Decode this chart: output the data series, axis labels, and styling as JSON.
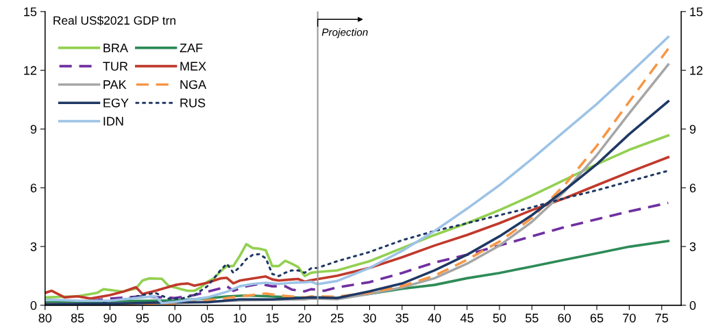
{
  "chart_data": {
    "type": "line",
    "ylabel": "Real US$2021 GDP trn",
    "xlim": [
      1980,
      2078
    ],
    "ylim": [
      0,
      15
    ],
    "y2lim": [
      0,
      15
    ],
    "xticks": [
      {
        "value": 1980,
        "label": "80"
      },
      {
        "value": 1985,
        "label": "85"
      },
      {
        "value": 1990,
        "label": "90"
      },
      {
        "value": 1995,
        "label": "95"
      },
      {
        "value": 2000,
        "label": "00"
      },
      {
        "value": 2005,
        "label": "05"
      },
      {
        "value": 2010,
        "label": "10"
      },
      {
        "value": 2015,
        "label": "15"
      },
      {
        "value": 2020,
        "label": "20"
      },
      {
        "value": 2025,
        "label": "25"
      },
      {
        "value": 2030,
        "label": "30"
      },
      {
        "value": 2035,
        "label": "35"
      },
      {
        "value": 2040,
        "label": "40"
      },
      {
        "value": 2045,
        "label": "45"
      },
      {
        "value": 2050,
        "label": "50"
      },
      {
        "value": 2055,
        "label": "55"
      },
      {
        "value": 2060,
        "label": "60"
      },
      {
        "value": 2065,
        "label": "65"
      },
      {
        "value": 2070,
        "label": "70"
      },
      {
        "value": 2075,
        "label": "75"
      }
    ],
    "yticks": [
      0,
      3,
      6,
      9,
      12,
      15
    ],
    "y2ticks": [
      0,
      3,
      6,
      9,
      12,
      15
    ],
    "grid": false,
    "legend": "top left",
    "marker": "none",
    "ref_lines": [
      {
        "axis": "x",
        "value": 2022,
        "label": "Projection",
        "color": "#999999",
        "line_style": "solid"
      }
    ],
    "series": [
      {
        "name": "BRA",
        "color": "#92d050",
        "line_style": "solid",
        "x": [
          1980,
          1985,
          1988,
          1989,
          1991,
          1992,
          1994,
          1995,
          1996,
          1998,
          1999,
          2001,
          2002,
          2003,
          2004,
          2005,
          2006,
          2007,
          2008,
          2009,
          2010,
          2011,
          2012,
          2013,
          2014,
          2015,
          2016,
          2017,
          2018,
          2019,
          2020,
          2021,
          2022,
          2025,
          2030,
          2035,
          2040,
          2045,
          2050,
          2055,
          2060,
          2065,
          2070,
          2076
        ],
        "values": [
          0.4,
          0.46,
          0.63,
          0.82,
          0.74,
          0.69,
          0.86,
          1.26,
          1.37,
          1.35,
          1.0,
          0.82,
          0.74,
          0.74,
          0.92,
          1.2,
          1.37,
          1.72,
          2.0,
          2.0,
          2.52,
          3.12,
          2.92,
          2.89,
          2.81,
          2.0,
          2.0,
          2.27,
          2.12,
          1.95,
          1.49,
          1.66,
          1.7,
          1.78,
          2.25,
          2.92,
          3.59,
          4.19,
          4.86,
          5.6,
          6.4,
          7.2,
          7.94,
          8.67
        ]
      },
      {
        "name": "ZAF",
        "color": "#2e8b57",
        "line_style": "solid",
        "x": [
          1980,
          1990,
          2000,
          2005,
          2008,
          2011,
          2015,
          2020,
          2021,
          2025,
          2030,
          2035,
          2040,
          2045,
          2050,
          2055,
          2060,
          2065,
          2070,
          2076
        ],
        "values": [
          0.15,
          0.2,
          0.25,
          0.35,
          0.45,
          0.5,
          0.45,
          0.38,
          0.4,
          0.37,
          0.58,
          0.84,
          1.04,
          1.38,
          1.65,
          1.98,
          2.32,
          2.65,
          2.99,
          3.28
        ]
      },
      {
        "name": "TUR",
        "color": "#7030a0",
        "line_style": "dashed",
        "x": [
          1987,
          1990,
          1995,
          1998,
          2000,
          2003,
          2005,
          2007,
          2008,
          2009,
          2011,
          2013,
          2015,
          2017,
          2018,
          2020,
          2021,
          2023,
          2025,
          2030,
          2035,
          2040,
          2045,
          2050,
          2055,
          2060,
          2065,
          2070,
          2076
        ],
        "values": [
          0.23,
          0.34,
          0.46,
          0.4,
          0.37,
          0.52,
          0.69,
          0.86,
          0.97,
          0.74,
          0.97,
          1.09,
          0.97,
          0.97,
          0.8,
          0.71,
          0.82,
          0.74,
          0.91,
          1.18,
          1.65,
          2.18,
          2.58,
          3.05,
          3.52,
          3.99,
          4.39,
          4.79,
          5.23
        ]
      },
      {
        "name": "MEX",
        "color": "#c0392b",
        "line_style": "solid",
        "x": [
          1980,
          1981,
          1983,
          1985,
          1987,
          1990,
          1992,
          1994,
          1995,
          1997,
          2000,
          2001,
          2002,
          2003,
          2005,
          2007,
          2008,
          2009,
          2010,
          2012,
          2014,
          2015,
          2016,
          2018,
          2019,
          2020,
          2021,
          2025,
          2030,
          2035,
          2040,
          2045,
          2050,
          2055,
          2060,
          2065,
          2070,
          2076
        ],
        "values": [
          0.63,
          0.74,
          0.4,
          0.46,
          0.34,
          0.52,
          0.69,
          0.92,
          0.57,
          0.74,
          1.03,
          1.09,
          1.11,
          1.0,
          1.15,
          1.37,
          1.4,
          1.12,
          1.26,
          1.37,
          1.47,
          1.32,
          1.26,
          1.32,
          1.34,
          1.2,
          1.28,
          1.51,
          1.91,
          2.45,
          3.05,
          3.59,
          4.19,
          4.86,
          5.46,
          6.13,
          6.8,
          7.56
        ]
      },
      {
        "name": "PAK",
        "color": "#a6a6a6",
        "line_style": "solid",
        "x": [
          1980,
          2000,
          2010,
          2020,
          2021,
          2025,
          2030,
          2035,
          2040,
          2045,
          2050,
          2055,
          2060,
          2065,
          2070,
          2076
        ],
        "values": [
          0.05,
          0.1,
          0.25,
          0.3,
          0.35,
          0.31,
          0.58,
          0.91,
          1.38,
          2.12,
          3.05,
          4.26,
          5.8,
          7.67,
          9.81,
          12.29
        ]
      },
      {
        "name": "NGA",
        "color": "#f79646",
        "line_style": "dashed",
        "x": [
          1980,
          1990,
          2000,
          2005,
          2010,
          2014,
          2016,
          2020,
          2021,
          2025,
          2030,
          2035,
          2040,
          2045,
          2050,
          2055,
          2060,
          2065,
          2070,
          2076
        ],
        "values": [
          0.05,
          0.05,
          0.1,
          0.25,
          0.45,
          0.6,
          0.5,
          0.4,
          0.45,
          0.44,
          0.64,
          0.98,
          1.51,
          2.32,
          3.25,
          4.46,
          6.13,
          8.14,
          10.4,
          13.1
        ]
      },
      {
        "name": "EGY",
        "color": "#1f3864",
        "line_style": "solid",
        "x": [
          1980,
          1990,
          2000,
          2005,
          2010,
          2015,
          2020,
          2021,
          2025,
          2030,
          2035,
          2040,
          2045,
          2050,
          2055,
          2060,
          2065,
          2070,
          2076
        ],
        "values": [
          0.05,
          0.08,
          0.15,
          0.15,
          0.3,
          0.3,
          0.38,
          0.4,
          0.37,
          0.71,
          1.11,
          1.78,
          2.58,
          3.52,
          4.6,
          5.87,
          7.2,
          8.74,
          10.41
        ]
      },
      {
        "name": "RUS",
        "color": "#1f3864",
        "line_style": "dotted",
        "x": [
          1989,
          1992,
          1995,
          1997,
          1999,
          2001,
          2003,
          2005,
          2006,
          2007,
          2008,
          2009,
          2010,
          2011,
          2012,
          2013,
          2014,
          2015,
          2016,
          2017,
          2018,
          2019,
          2020,
          2021,
          2022,
          2025,
          2030,
          2035,
          2040,
          2045,
          2050,
          2055,
          2060,
          2065,
          2070,
          2076
        ],
        "values": [
          0.17,
          0.29,
          0.52,
          0.63,
          0.34,
          0.34,
          0.52,
          0.97,
          1.37,
          1.78,
          2.12,
          1.66,
          1.95,
          2.35,
          2.58,
          2.61,
          2.4,
          1.6,
          1.49,
          1.66,
          1.78,
          1.78,
          1.66,
          1.89,
          1.91,
          2.25,
          2.72,
          3.32,
          3.79,
          4.19,
          4.6,
          5.0,
          5.47,
          5.87,
          6.33,
          6.87
        ]
      },
      {
        "name": "IDN",
        "color": "#9dc3e6",
        "line_style": "solid",
        "x": [
          1980,
          1985,
          1990,
          1995,
          1997,
          1998,
          2000,
          2005,
          2008,
          2010,
          2012,
          2014,
          2016,
          2018,
          2020,
          2021,
          2022,
          2025,
          2030,
          2035,
          2040,
          2045,
          2050,
          2055,
          2060,
          2065,
          2070,
          2076
        ],
        "values": [
          0.29,
          0.23,
          0.23,
          0.4,
          0.46,
          0.11,
          0.17,
          0.4,
          0.69,
          0.97,
          1.09,
          1.15,
          1.09,
          1.15,
          1.17,
          1.2,
          1.08,
          1.24,
          1.91,
          2.78,
          3.79,
          4.93,
          6.13,
          7.47,
          8.88,
          10.28,
          11.82,
          13.7
        ]
      }
    ]
  }
}
